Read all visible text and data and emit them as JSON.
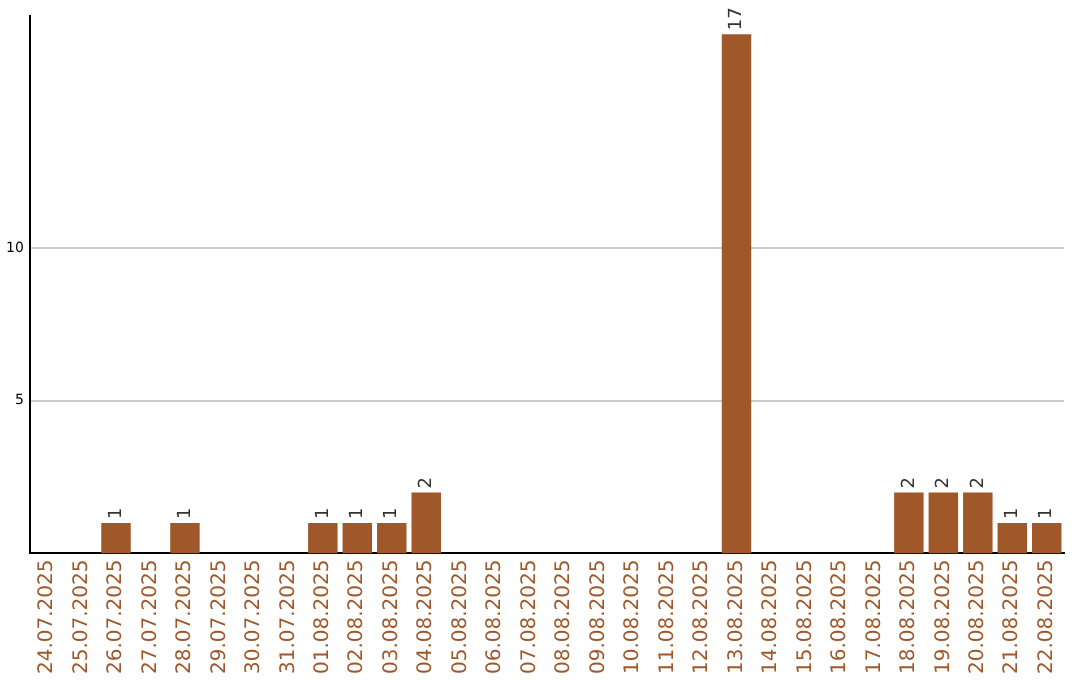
{
  "chart_data": {
    "type": "bar",
    "categories": [
      "24.07.2025",
      "25.07.2025",
      "26.07.2025",
      "27.07.2025",
      "28.07.2025",
      "29.07.2025",
      "30.07.2025",
      "31.07.2025",
      "01.08.2025",
      "02.08.2025",
      "03.08.2025",
      "04.08.2025",
      "05.08.2025",
      "06.08.2025",
      "07.08.2025",
      "08.08.2025",
      "09.08.2025",
      "10.08.2025",
      "11.08.2025",
      "12.08.2025",
      "13.08.2025",
      "14.08.2025",
      "15.08.2025",
      "16.08.2025",
      "17.08.2025",
      "18.08.2025",
      "19.08.2025",
      "20.08.2025",
      "21.08.2025",
      "22.08.2025"
    ],
    "values": [
      0,
      0,
      1,
      0,
      1,
      0,
      0,
      0,
      1,
      1,
      1,
      2,
      0,
      0,
      0,
      0,
      0,
      0,
      0,
      0,
      17,
      0,
      0,
      0,
      0,
      2,
      2,
      2,
      1,
      1
    ],
    "value_labels": [
      null,
      null,
      "1",
      null,
      "1",
      null,
      null,
      null,
      "1",
      "1",
      "1",
      "2",
      null,
      null,
      null,
      null,
      null,
      null,
      null,
      null,
      "17",
      null,
      null,
      null,
      null,
      "2",
      "2",
      "2",
      "1",
      "1"
    ],
    "color": "#a0582b",
    "ylim": [
      0,
      17.6
    ],
    "yticks": [
      5,
      10
    ],
    "grid": "y",
    "legend": false
  }
}
